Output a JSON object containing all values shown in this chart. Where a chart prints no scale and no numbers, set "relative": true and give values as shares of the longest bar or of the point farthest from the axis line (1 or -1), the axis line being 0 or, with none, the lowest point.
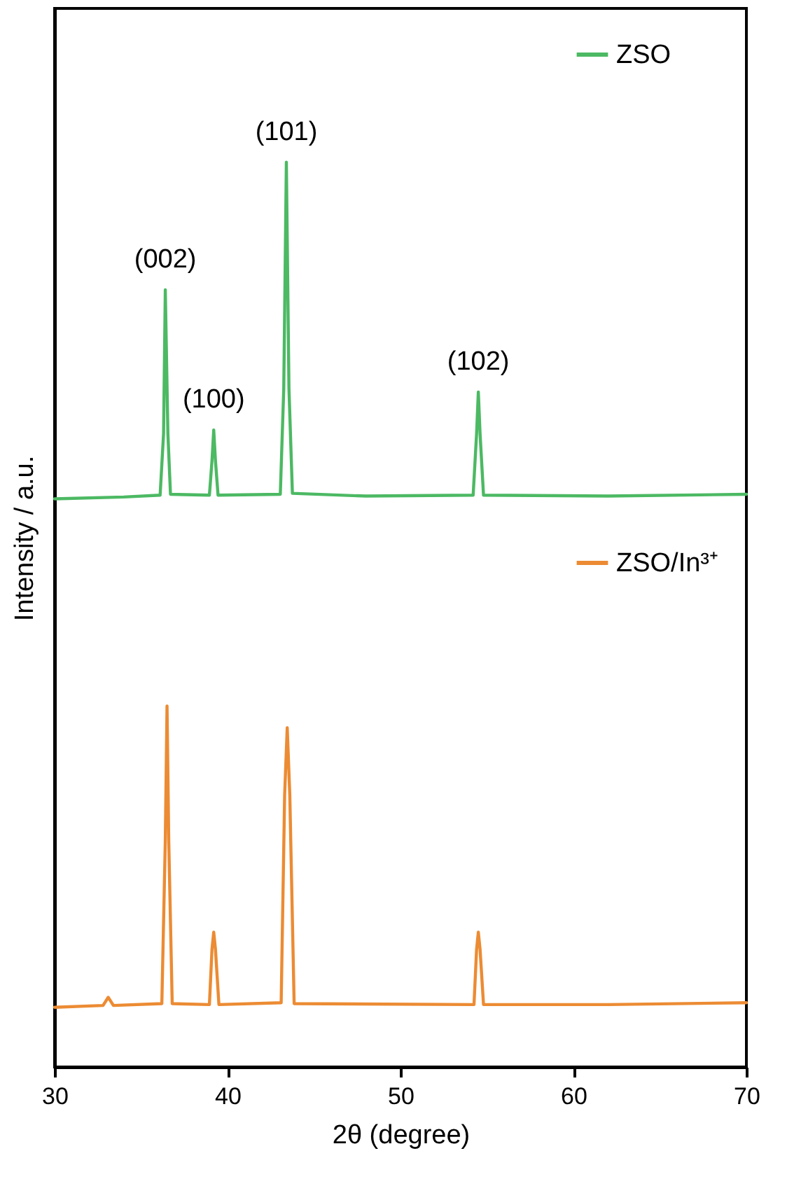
{
  "chart_data": {
    "type": "line",
    "relative": true,
    "xlabel": "2θ (degree)",
    "ylabel": "Intensity / a.u.",
    "xlim": [
      30,
      70
    ],
    "xticks": [
      30,
      40,
      50,
      60,
      70
    ],
    "grid": false,
    "legend": "top right",
    "marker": "none",
    "line_style": "solid",
    "series": [
      {
        "name": "ZSO",
        "color": "#4cb963",
        "x": [
          30,
          34,
          36.1,
          36.3,
          36.4,
          36.55,
          36.7,
          38.95,
          39.1,
          39.2,
          39.3,
          39.45,
          43.05,
          43.25,
          43.4,
          43.55,
          43.75,
          48,
          54.2,
          54.4,
          54.5,
          54.6,
          54.8,
          62,
          70
        ],
        "values": [
          0.628,
          0.63,
          0.632,
          0.7,
          0.859,
          0.7,
          0.633,
          0.632,
          0.67,
          0.704,
          0.67,
          0.632,
          0.633,
          0.75,
          1.0,
          0.75,
          0.634,
          0.631,
          0.632,
          0.7,
          0.746,
          0.7,
          0.632,
          0.631,
          0.633
        ]
      },
      {
        "name": "ZSO/In³⁺",
        "color": "#ec8b33",
        "x": [
          30,
          32.8,
          33.1,
          33.4,
          36.2,
          36.4,
          36.5,
          36.6,
          36.8,
          38.95,
          39.1,
          39.2,
          39.3,
          39.5,
          43.1,
          43.3,
          43.45,
          43.6,
          43.85,
          54.25,
          54.4,
          54.5,
          54.6,
          54.8,
          62,
          70
        ],
        "values": [
          0.066,
          0.068,
          0.077,
          0.068,
          0.07,
          0.25,
          0.399,
          0.25,
          0.07,
          0.069,
          0.13,
          0.149,
          0.13,
          0.069,
          0.071,
          0.3,
          0.375,
          0.3,
          0.07,
          0.069,
          0.13,
          0.149,
          0.13,
          0.069,
          0.069,
          0.071
        ]
      }
    ],
    "annotations": [
      {
        "text": "(002)",
        "x": 36.4,
        "y": 0.859
      },
      {
        "text": "(100)",
        "x": 39.2,
        "y": 0.704
      },
      {
        "text": "(101)",
        "x": 43.4,
        "y": 1.0
      },
      {
        "text": "(102)",
        "x": 54.5,
        "y": 0.746
      }
    ]
  }
}
